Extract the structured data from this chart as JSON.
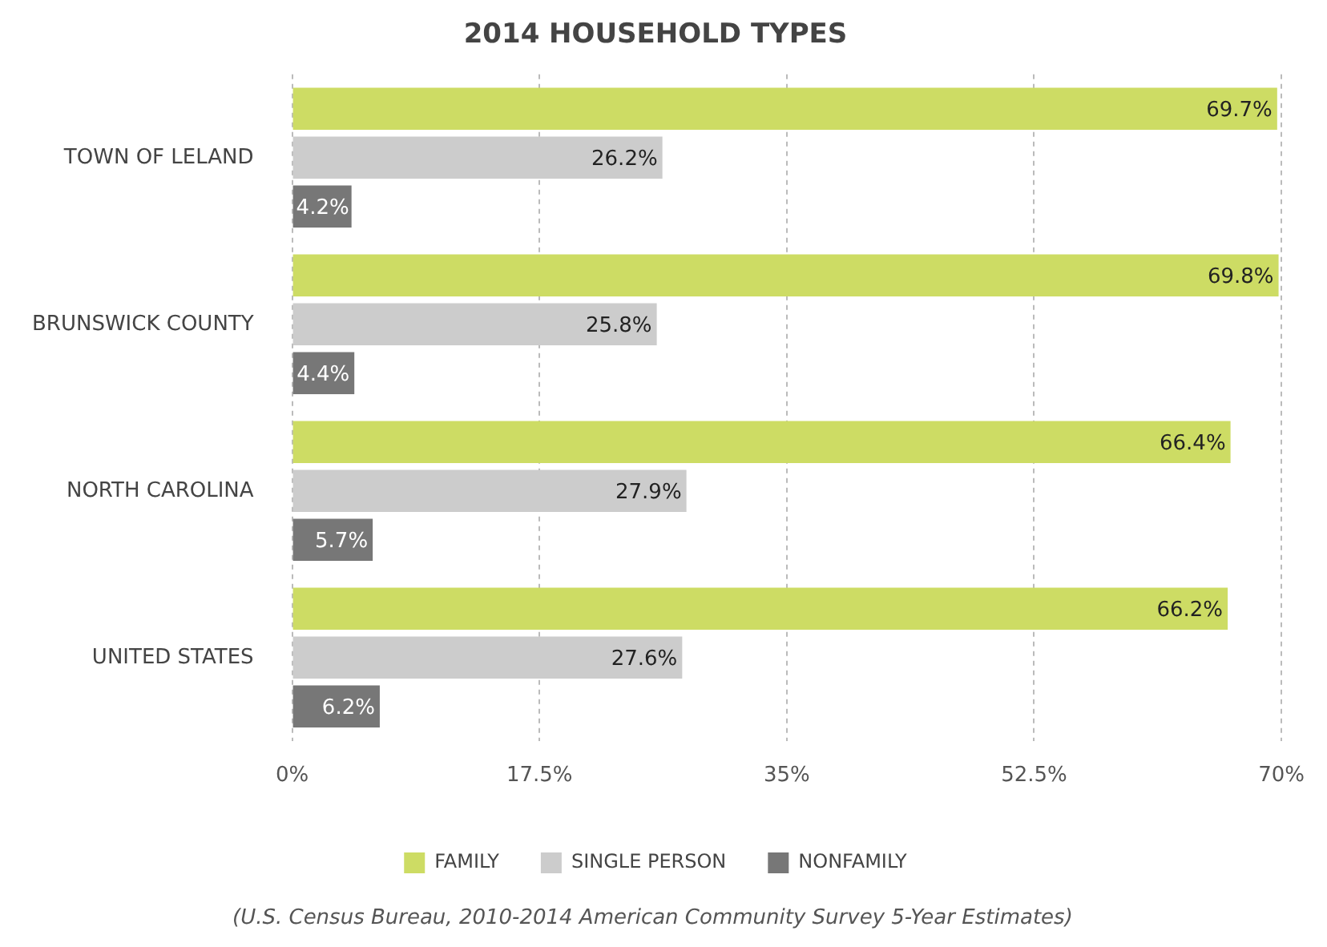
{
  "chart_data": {
    "type": "bar",
    "orientation": "horizontal",
    "title": "2014 HOUSEHOLD TYPES",
    "categories": [
      "TOWN OF LELAND",
      "BRUNSWICK COUNTY",
      "NORTH CAROLINA",
      "UNITED STATES"
    ],
    "series": [
      {
        "name": "FAMILY",
        "color": "#cddc64",
        "values": [
          69.7,
          69.8,
          66.4,
          66.2
        ],
        "value_labels": [
          "69.7%",
          "69.8%",
          "66.4%",
          "66.2%"
        ]
      },
      {
        "name": "SINGLE PERSON",
        "color": "#cccccc",
        "values": [
          26.2,
          25.8,
          27.9,
          27.6
        ],
        "value_labels": [
          "26.2%",
          "25.8%",
          "27.9%",
          "27.6%"
        ]
      },
      {
        "name": "NONFAMILY",
        "color": "#777777",
        "values": [
          4.2,
          4.4,
          5.7,
          6.2
        ],
        "value_labels": [
          "4.2%",
          "4.4%",
          "5.7%",
          "6.2%"
        ]
      }
    ],
    "xlim": [
      0,
      70
    ],
    "xticks": [
      {
        "value": 0,
        "label": "0%"
      },
      {
        "value": 17.5,
        "label": "17.5%"
      },
      {
        "value": 35,
        "label": "35%"
      },
      {
        "value": 52.5,
        "label": "52.5%"
      },
      {
        "value": 70,
        "label": "70%"
      }
    ],
    "grid": "x",
    "legend": "bottom",
    "annotations": [
      "(U.S. Census Bureau, 2010-2014 American Community Survey 5-Year Estimates)"
    ]
  }
}
